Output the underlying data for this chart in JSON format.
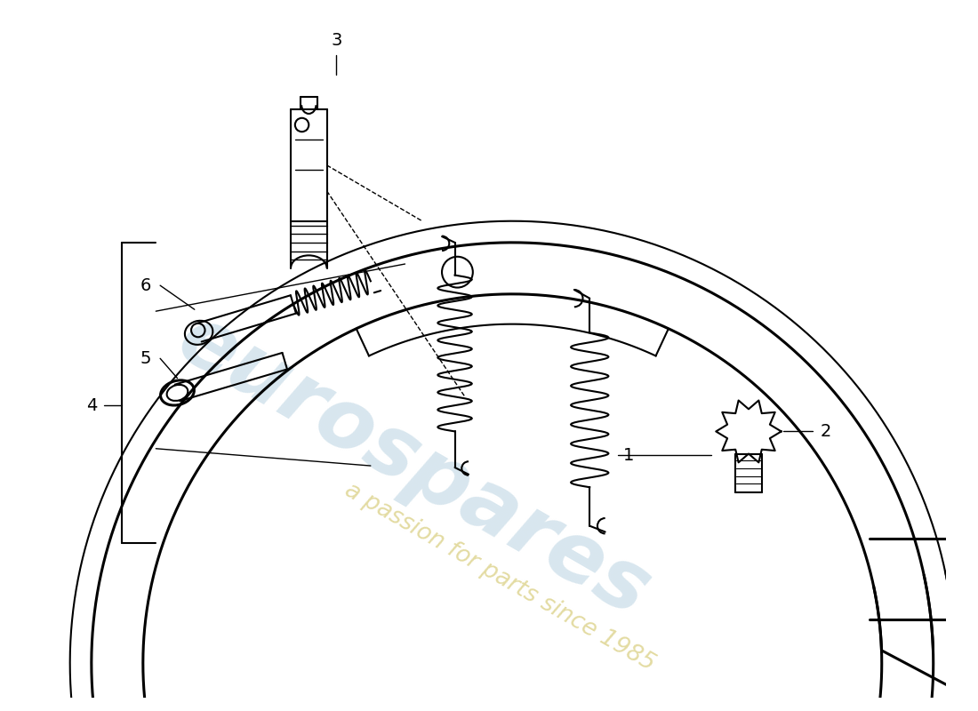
{
  "background_color": "#ffffff",
  "line_color": "#000000",
  "watermark_text1": "eurospares",
  "watermark_text2": "a passion for parts since 1985",
  "watermark_color1": "#c8dce8",
  "watermark_color2": "#d4c870",
  "figure_width": 11.0,
  "figure_height": 8.0,
  "dpi": 100,
  "label_fontsize": 14
}
